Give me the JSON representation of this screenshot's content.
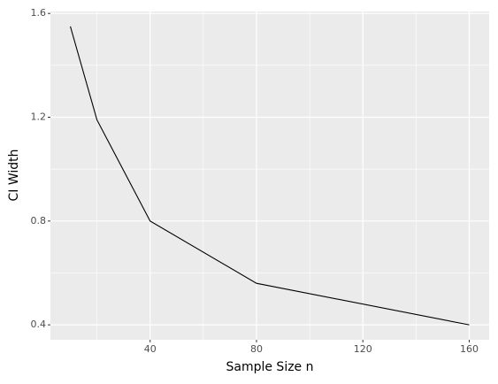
{
  "chart_data": {
    "type": "line",
    "x_label": "Sample Size n",
    "y_label": "CI Width",
    "x": [
      10,
      20,
      40,
      80,
      160
    ],
    "series": [
      {
        "color": "#000000",
        "values": [
          1.55,
          1.19,
          0.8,
          0.56,
          0.4
        ]
      }
    ],
    "xlim": [
      2.5,
      167.5
    ],
    "ylim": [
      0.3425,
      1.6075
    ],
    "xticks": [
      40,
      80,
      120,
      160
    ],
    "yticks": [
      0.4,
      0.8,
      1.2,
      1.6
    ],
    "minor_xticks": [
      20,
      60,
      100,
      140
    ],
    "minor_yticks": [
      0.6,
      1.0,
      1.4
    ],
    "grid": true
  }
}
